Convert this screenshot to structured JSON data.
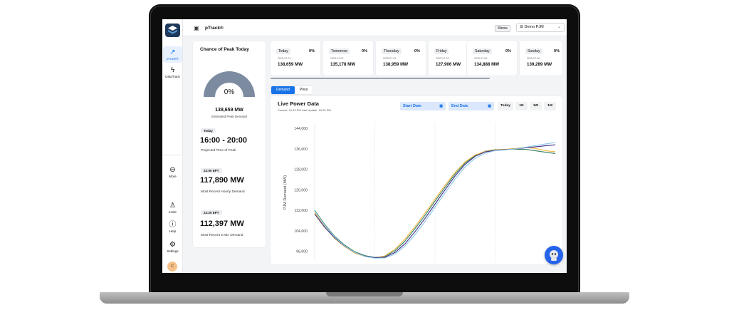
{
  "app": {
    "title": "pTrack®",
    "region": "Illinois",
    "account": "Demo PJM"
  },
  "sidebar": {
    "items": [
      {
        "label": "pTrack®",
        "icon": "trend-icon"
      },
      {
        "label": "DataTrack",
        "icon": "bolt-icon"
      }
    ],
    "bottom": [
      {
        "label": "More",
        "icon": "more-icon"
      },
      {
        "label": "Invite",
        "icon": "add-user-icon"
      },
      {
        "label": "Help",
        "icon": "help-icon"
      },
      {
        "label": "Settings",
        "icon": "gear-icon"
      }
    ],
    "avatar": "C"
  },
  "peak": {
    "title": "Chance of Peak Today",
    "chance": "0%",
    "estimated_value": "138,659 MW",
    "estimated_label": "Estimated Peak Demand",
    "day_pill": "Today",
    "time_range": "16:00 - 20:00",
    "time_label": "Projected Time of Peak",
    "hourly_pill": "22:00 EPT",
    "hourly_value": "117,890 MW",
    "hourly_label": "Most Recent Hourly Demand",
    "five_min_pill": "22:20 EPT",
    "five_min_value": "112,397 MW",
    "five_min_label": "Most Recent 5 Min Demand"
  },
  "days": [
    {
      "name": "Today",
      "pct": "0%",
      "date": "2025-07-01",
      "mw": "138,659 MW"
    },
    {
      "name": "Tomorrow",
      "pct": "0%",
      "date": "2025-07-02",
      "mw": "135,178 MW"
    },
    {
      "name": "Thursday",
      "pct": "0%",
      "date": "2025-07-03",
      "mw": "138,959 MW"
    },
    {
      "name": "Friday",
      "pct": "0%",
      "date": "2025-07-04",
      "mw": "127,906 MW"
    },
    {
      "name": "Saturday",
      "pct": "0%",
      "date": "2025-07-05",
      "mw": "134,888 MW"
    },
    {
      "name": "Sunday",
      "pct": "0%",
      "date": "2025-07-06",
      "mw": "139,289 MW"
    }
  ],
  "tabs": {
    "demand": "Demand",
    "price": "Price"
  },
  "live": {
    "title": "Live Power Data",
    "subtitle": "Current: 10:29 PM  Last Update: 10:25 PM",
    "start_date": "Start Date",
    "end_date": "End Date",
    "ranges": [
      "Today",
      "1D",
      "1W",
      "1M"
    ]
  },
  "colors": {
    "accent": "#1a73e8",
    "gauge": "#7d8ba1"
  },
  "chart_data": {
    "type": "line",
    "ylabel": "PJM Demand (MW)",
    "ylim": [
      92000,
      146000
    ],
    "yticks": [
      96000,
      104000,
      112000,
      120000,
      128000,
      136000,
      144000
    ],
    "x": [
      0,
      1,
      2,
      3,
      4,
      5,
      6,
      7,
      8,
      9,
      10,
      11,
      12,
      13,
      14,
      15,
      16,
      17,
      18,
      19,
      20,
      21,
      22,
      23,
      24
    ],
    "series": [
      {
        "color": "#2e7d5a",
        "values": [
          112000,
          106500,
          101800,
          98400,
          95800,
          94300,
          93600,
          94000,
          96200,
          100000,
          104800,
          110000,
          115600,
          121000,
          126200,
          130500,
          133400,
          135100,
          135700,
          135800,
          135900,
          135800,
          135300,
          134700,
          134200
        ]
      },
      {
        "color": "#f4b740",
        "values": [
          111200,
          105600,
          101000,
          97800,
          95300,
          94000,
          93400,
          94200,
          96800,
          100800,
          105600,
          110900,
          116400,
          121800,
          126800,
          130900,
          133600,
          135000,
          135600,
          135800,
          136200,
          136600,
          136200,
          135300,
          134900
        ]
      },
      {
        "color": "#3b2f87",
        "values": [
          110600,
          105400,
          101200,
          98000,
          95600,
          94100,
          93500,
          93700,
          95500,
          98900,
          103600,
          108800,
          114400,
          120000,
          125400,
          129900,
          133100,
          134800,
          135400,
          135700,
          136000,
          136400,
          136800,
          137200,
          137600
        ]
      },
      {
        "color": "#8fc7e8",
        "values": [
          111800,
          106200,
          101500,
          98100,
          95600,
          94000,
          93300,
          93400,
          94900,
          98000,
          102400,
          107600,
          113200,
          118800,
          124200,
          128900,
          132300,
          134300,
          135300,
          135600,
          136000,
          136600,
          137300,
          137900,
          138500
        ]
      }
    ]
  }
}
